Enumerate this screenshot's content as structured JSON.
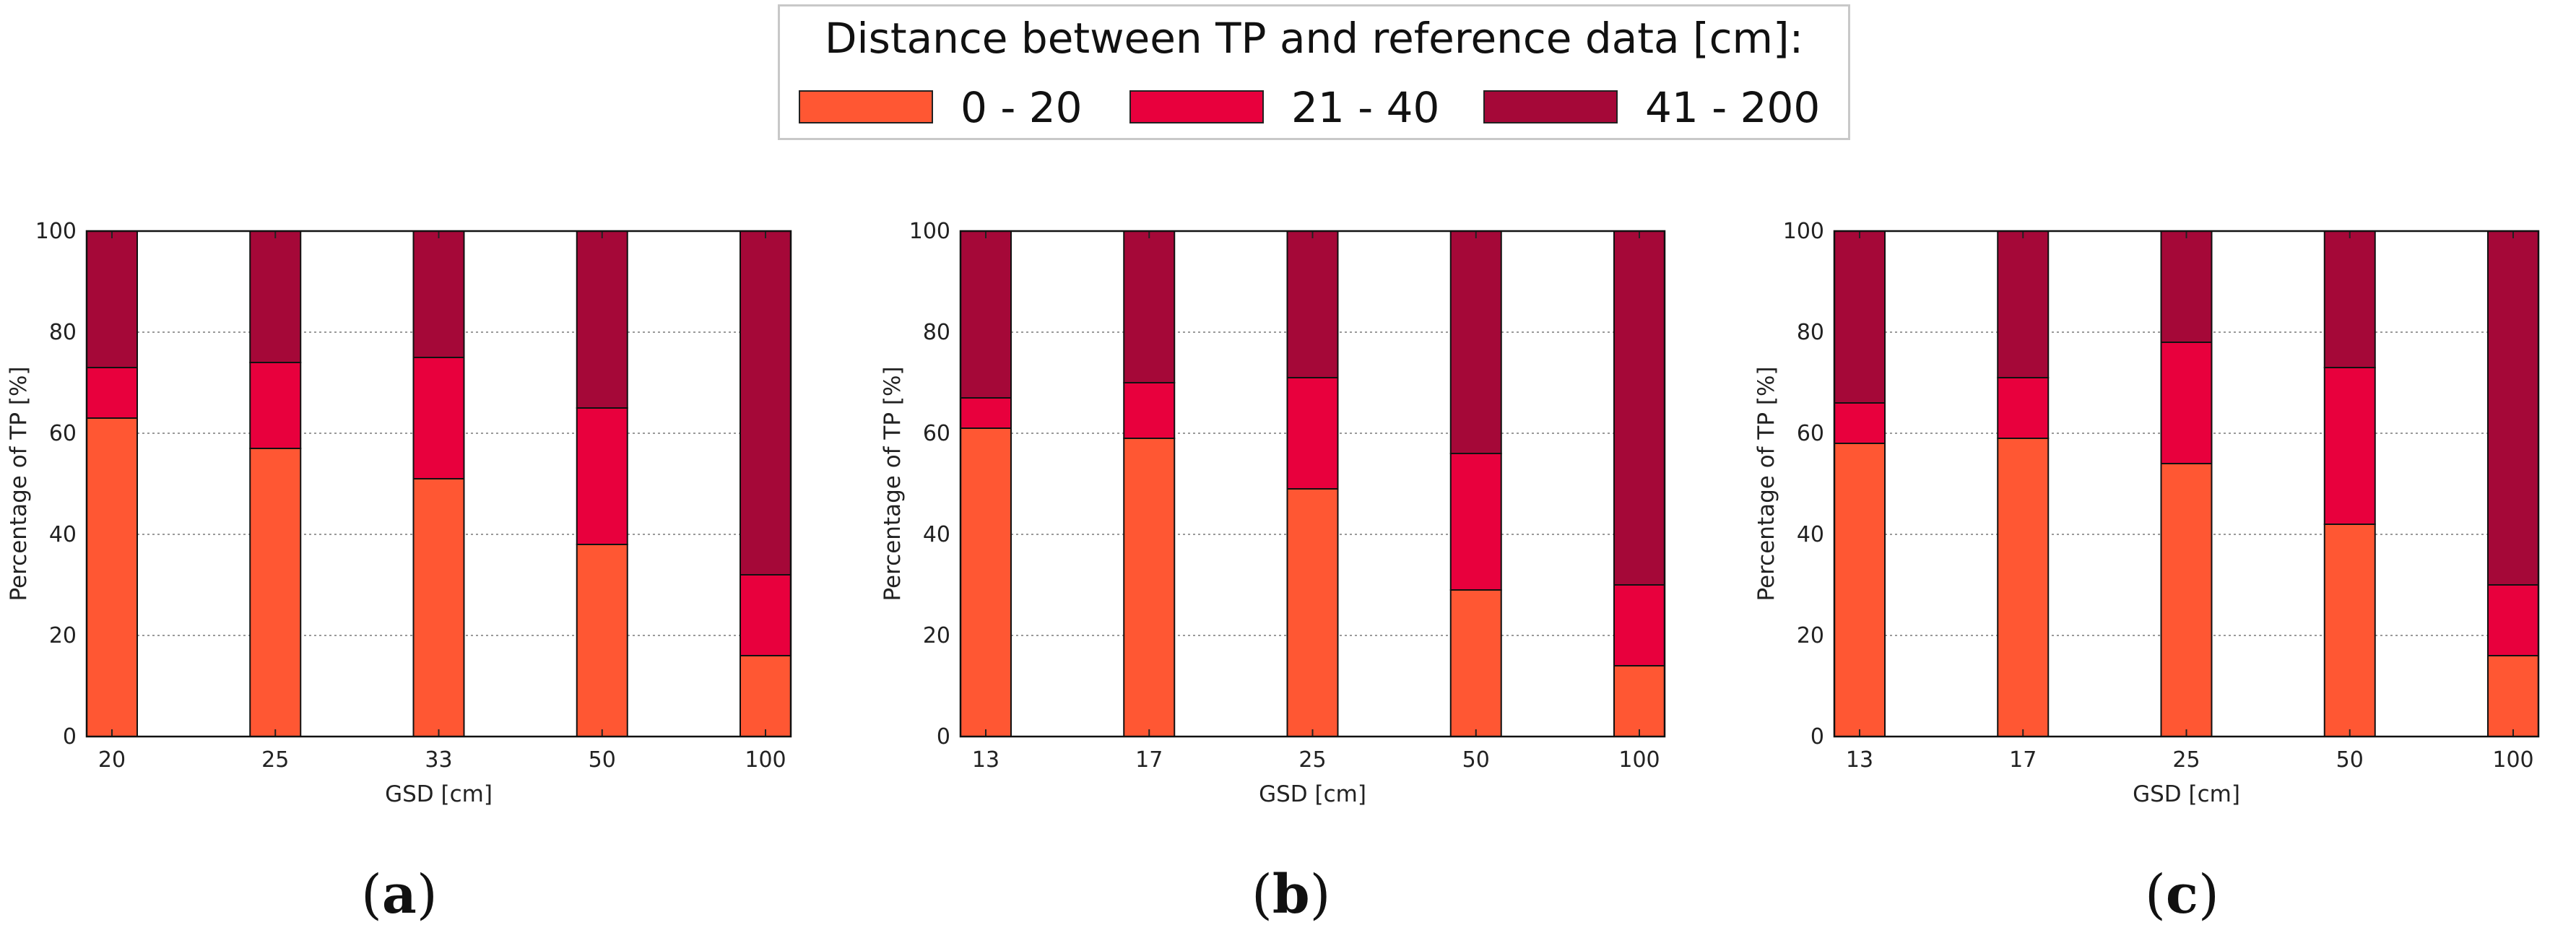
{
  "legend": {
    "title": "Distance between TP and reference data [cm]:",
    "entries": [
      {
        "label": "0 - 20",
        "color": "#ff5733"
      },
      {
        "label": "21 - 40",
        "color": "#e8003d"
      },
      {
        "label": "41 - 200",
        "color": "#a50838"
      }
    ]
  },
  "panel_labels": [
    {
      "open": "(",
      "letter": "a",
      "close": ")"
    },
    {
      "open": "(",
      "letter": "b",
      "close": ")"
    },
    {
      "open": "(",
      "letter": "c",
      "close": ")"
    }
  ],
  "chart_data": [
    {
      "type": "bar",
      "stacked": true,
      "title": "",
      "xlabel": "GSD [cm]",
      "ylabel": "Percentage of TP [%]",
      "ylim": [
        0,
        100
      ],
      "yticks": [
        "0",
        "20",
        "40",
        "60",
        "80",
        "100"
      ],
      "grid": true,
      "categories": [
        "20",
        "25",
        "33",
        "50",
        "100"
      ],
      "series": [
        {
          "name": "0 - 20",
          "values": [
            63,
            57,
            51,
            38,
            16
          ]
        },
        {
          "name": "21 - 40",
          "values": [
            10,
            17,
            24,
            27,
            16
          ]
        },
        {
          "name": "41 - 200",
          "values": [
            27,
            26,
            25,
            35,
            68
          ]
        }
      ]
    },
    {
      "type": "bar",
      "stacked": true,
      "title": "",
      "xlabel": "GSD [cm]",
      "ylabel": "Percentage of TP [%]",
      "ylim": [
        0,
        100
      ],
      "yticks": [
        "0",
        "20",
        "40",
        "60",
        "80",
        "100"
      ],
      "grid": true,
      "categories": [
        "13",
        "17",
        "25",
        "50",
        "100"
      ],
      "series": [
        {
          "name": "0 - 20",
          "values": [
            61,
            59,
            49,
            29,
            14
          ]
        },
        {
          "name": "21 - 40",
          "values": [
            6,
            11,
            22,
            27,
            16
          ]
        },
        {
          "name": "41 - 200",
          "values": [
            33,
            30,
            29,
            44,
            70
          ]
        }
      ]
    },
    {
      "type": "bar",
      "stacked": true,
      "title": "",
      "xlabel": "GSD [cm]",
      "ylabel": "Percentage of TP [%]",
      "ylim": [
        0,
        100
      ],
      "yticks": [
        "0",
        "20",
        "40",
        "60",
        "80",
        "100"
      ],
      "grid": true,
      "categories": [
        "13",
        "17",
        "25",
        "50",
        "100"
      ],
      "series": [
        {
          "name": "0 - 20",
          "values": [
            58,
            59,
            54,
            42,
            16
          ]
        },
        {
          "name": "21 - 40",
          "values": [
            8,
            12,
            24,
            31,
            14
          ]
        },
        {
          "name": "41 - 200",
          "values": [
            34,
            29,
            22,
            27,
            70
          ]
        }
      ]
    }
  ]
}
